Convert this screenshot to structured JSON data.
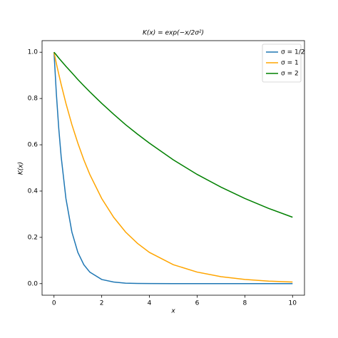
{
  "chart_data": {
    "type": "line",
    "title": "K(x) = exp(−x/2σ²)",
    "x_label": "x",
    "y_label": "K(x)",
    "x": [
      0,
      0.1,
      0.2,
      0.3,
      0.5,
      0.75,
      1,
      1.25,
      1.5,
      2,
      2.5,
      3,
      3.5,
      4,
      5,
      6,
      7,
      8,
      9,
      10
    ],
    "series": [
      {
        "name": "σ = 1/2",
        "color": "#1f77b4",
        "values": [
          1,
          0.819,
          0.67,
          0.549,
          0.368,
          0.223,
          0.135,
          0.082,
          0.05,
          0.018,
          0.007,
          0.002,
          0.001,
          0.0003,
          0,
          0,
          0,
          0,
          0,
          0
        ]
      },
      {
        "name": "σ = 1",
        "color": "#ffa500",
        "values": [
          1,
          0.951,
          0.905,
          0.861,
          0.779,
          0.687,
          0.607,
          0.535,
          0.472,
          0.368,
          0.287,
          0.223,
          0.174,
          0.135,
          0.082,
          0.05,
          0.03,
          0.018,
          0.011,
          0.007
        ]
      },
      {
        "name": "σ = 2",
        "color": "#008000",
        "values": [
          1,
          0.988,
          0.975,
          0.963,
          0.939,
          0.911,
          0.882,
          0.855,
          0.829,
          0.779,
          0.732,
          0.687,
          0.646,
          0.607,
          0.535,
          0.472,
          0.417,
          0.368,
          0.325,
          0.287
        ]
      }
    ],
    "xlim": [
      -0.5,
      10.5
    ],
    "ylim": [
      -0.05,
      1.05
    ],
    "xticks": [
      0,
      2,
      4,
      6,
      8,
      10
    ],
    "yticks": [
      {
        "value": 0,
        "label": "0.0"
      },
      0.2,
      0.4,
      0.6,
      0.8,
      {
        "value": 1,
        "label": "1.0"
      }
    ],
    "legend": "upper right",
    "grid": false
  }
}
